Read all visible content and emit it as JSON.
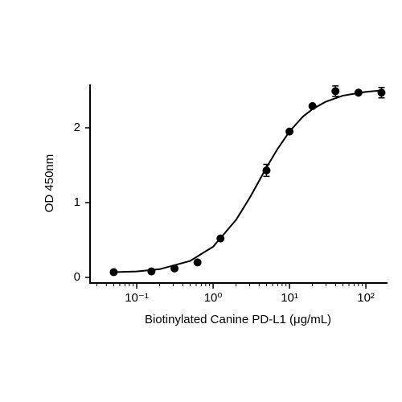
{
  "chart_data": {
    "type": "scatter",
    "x_label": "Biotinylated Canine PD-L1 (μg/mL)",
    "y_label": "OD 450nm",
    "x": [
      0.05,
      0.156,
      0.3125,
      0.625,
      1.25,
      5,
      10,
      20,
      40,
      80,
      160
    ],
    "values": [
      0.07,
      0.08,
      0.12,
      0.2,
      0.52,
      1.43,
      1.95,
      2.29,
      2.49,
      2.47,
      2.47
    ],
    "errors": [
      0.02,
      0.02,
      0.02,
      0.02,
      0.02,
      0.08,
      0.02,
      0.02,
      0.07,
      0.02,
      0.07
    ],
    "color": "#000000",
    "fit_curve": {
      "x": [
        0.05,
        0.1,
        0.2,
        0.5,
        1,
        2,
        3,
        4,
        5,
        7,
        10,
        15,
        20,
        30,
        50,
        100,
        160
      ],
      "values": [
        0.07,
        0.08,
        0.11,
        0.22,
        0.41,
        0.77,
        1.06,
        1.29,
        1.47,
        1.72,
        1.95,
        2.15,
        2.25,
        2.35,
        2.43,
        2.48,
        2.5
      ],
      "color": "#000000"
    },
    "xlog": true,
    "xlim": [
      0.0245,
      192
    ],
    "ylim": [
      -0.075,
      2.58
    ],
    "xticks": [
      {
        "value": 0.1,
        "label": "10⁻¹"
      },
      {
        "value": 1,
        "label": "10⁰"
      },
      {
        "value": 10,
        "label": "10¹"
      },
      {
        "value": 100,
        "label": "10²"
      }
    ],
    "yticks": [
      0,
      1,
      2
    ],
    "minor_ticks": true,
    "grid": false
  }
}
